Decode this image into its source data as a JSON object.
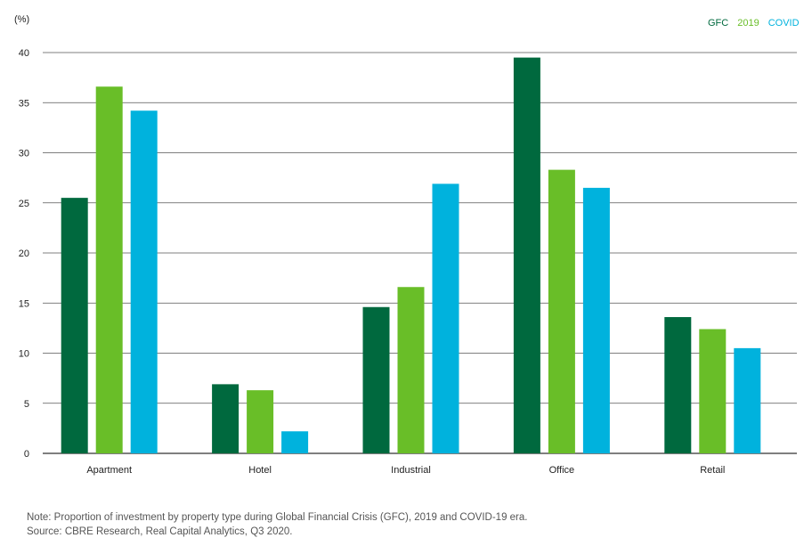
{
  "chart_data": {
    "type": "bar",
    "unit_label": "(%)",
    "categories": [
      "Apartment",
      "Hotel",
      "Industrial",
      "Office",
      "Retail"
    ],
    "series": [
      {
        "name": "GFC",
        "color": "#00693e",
        "values": [
          25.5,
          6.9,
          14.6,
          39.5,
          13.6
        ]
      },
      {
        "name": "2019",
        "color": "#69be28",
        "values": [
          36.6,
          6.3,
          16.6,
          28.3,
          12.4
        ]
      },
      {
        "name": "COVID",
        "color": "#00b2dd",
        "values": [
          34.2,
          2.2,
          26.9,
          26.5,
          10.5
        ]
      }
    ],
    "ylim": [
      0,
      40
    ],
    "yticks": [
      0,
      5,
      10,
      15,
      20,
      25,
      30,
      35,
      40
    ],
    "grid": true,
    "legend_position": "top-right"
  },
  "footnotes": {
    "note": "Note: Proportion of investment by property type during Global Financial Crisis (GFC), 2019 and COVID-19 era.",
    "source": "Source: CBRE Research, Real Capital Analytics, Q3 2020."
  }
}
